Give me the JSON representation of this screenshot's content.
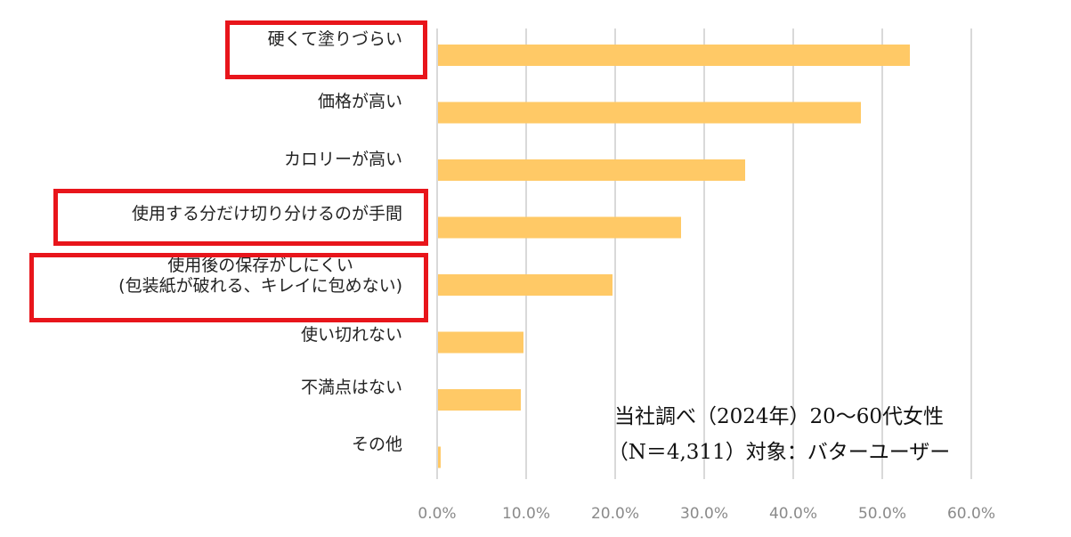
{
  "chart_data": {
    "type": "bar",
    "orientation": "horizontal",
    "categories": [
      "硬くて塗りづらい",
      "価格が高い",
      "カロリーが高い",
      "使用する分だけ切り分けるのが手間",
      "使用後の保存がしにくい\n(包装紙が破れる、キレイに包めない)",
      "使い切れない",
      "不満点はない",
      "その他"
    ],
    "values": [
      53.0,
      47.5,
      34.5,
      27.3,
      19.6,
      9.6,
      9.3,
      0.3
    ],
    "highlighted": [
      true,
      false,
      false,
      true,
      true,
      false,
      false,
      false
    ],
    "xlim": [
      0,
      60
    ],
    "xticks": [
      "0.0%",
      "10.0%",
      "20.0%",
      "30.0%",
      "40.0%",
      "50.0%",
      "60.0%"
    ],
    "grid": true,
    "colors": {
      "bar": "#ffc966",
      "grid": "#d9d9d9",
      "highlight": "#e8151b"
    }
  },
  "note": {
    "line1": "当社調べ（2024年）20～60代女性",
    "line2": "（N＝4,311）対象：バターユーザー"
  }
}
